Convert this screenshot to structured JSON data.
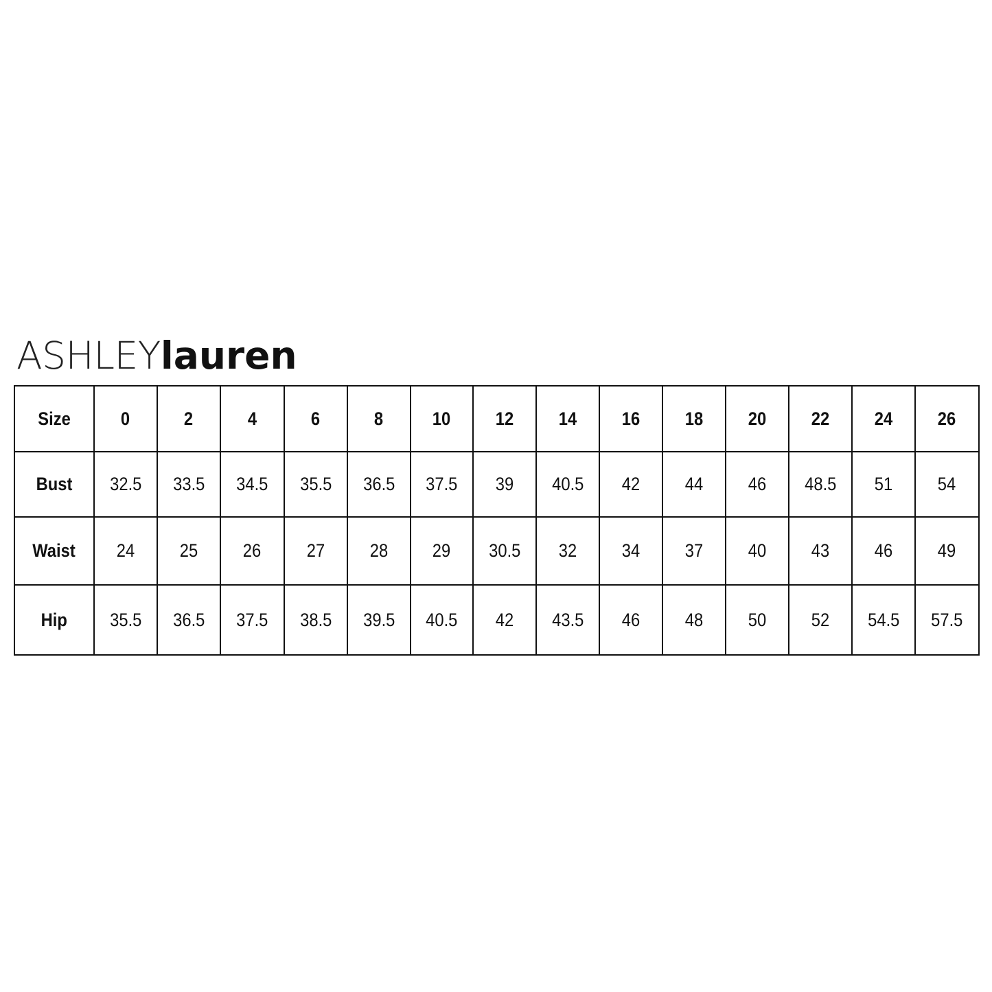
{
  "brand": {
    "logo_part1": "ASHLEY",
    "logo_part2": "lauren"
  },
  "table": {
    "header": [
      "Size",
      "0",
      "2",
      "4",
      "6",
      "8",
      "10",
      "12",
      "14",
      "16",
      "18",
      "20",
      "22",
      "24",
      "26"
    ],
    "rows": [
      {
        "label": "Bust",
        "values": [
          "32.5",
          "33.5",
          "34.5",
          "35.5",
          "36.5",
          "37.5",
          "39",
          "40.5",
          "42",
          "44",
          "46",
          "48.5",
          "51",
          "54"
        ]
      },
      {
        "label": "Waist",
        "values": [
          "24",
          "25",
          "26",
          "27",
          "28",
          "29",
          "30.5",
          "32",
          "34",
          "37",
          "40",
          "43",
          "46",
          "49"
        ]
      },
      {
        "label": "Hip",
        "values": [
          "35.5",
          "36.5",
          "37.5",
          "38.5",
          "39.5",
          "40.5",
          "42",
          "43.5",
          "46",
          "48",
          "50",
          "52",
          "54.5",
          "57.5"
        ]
      }
    ]
  }
}
